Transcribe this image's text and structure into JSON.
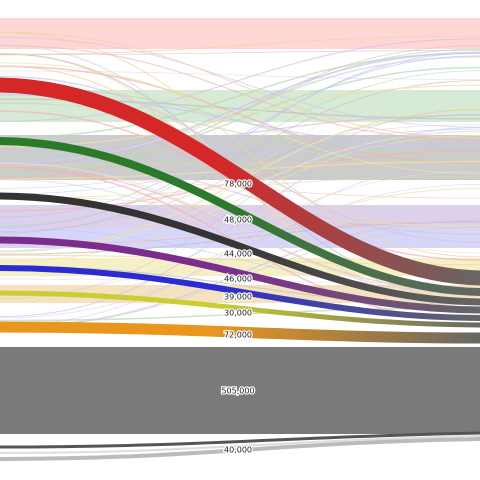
{
  "chart_data": {
    "type": "sankey",
    "title": "",
    "flows": [
      {
        "value": 78000,
        "label": "78,000",
        "color": "#d62728"
      },
      {
        "value": 48000,
        "label": "48,000",
        "color": "#2a7a2a"
      },
      {
        "value": 44000,
        "label": "44,000",
        "color": "#333333"
      },
      {
        "value": 46000,
        "label": "46,000",
        "color": "#7b2d8e"
      },
      {
        "value": 39000,
        "label": "39,000",
        "color": "#2b2bcf"
      },
      {
        "value": 30000,
        "label": "30,000",
        "color": "#cccc33"
      },
      {
        "value": 72000,
        "label": "72,000",
        "color": "#e8961e"
      },
      {
        "value": 505000,
        "label": "505,000",
        "color": "#7a7a7a"
      },
      {
        "value": 40000,
        "label": "40,000",
        "color": "#555555"
      }
    ],
    "target_color": "#666666",
    "background_bands": [
      {
        "color": "#ffd6d6"
      },
      {
        "color": "#d6ead6"
      },
      {
        "color": "#cccccc"
      },
      {
        "color": "#ddd0ea"
      },
      {
        "color": "#d6d6fa"
      },
      {
        "color": "#f5f0c8"
      },
      {
        "color": "#f6e2c0"
      }
    ]
  }
}
